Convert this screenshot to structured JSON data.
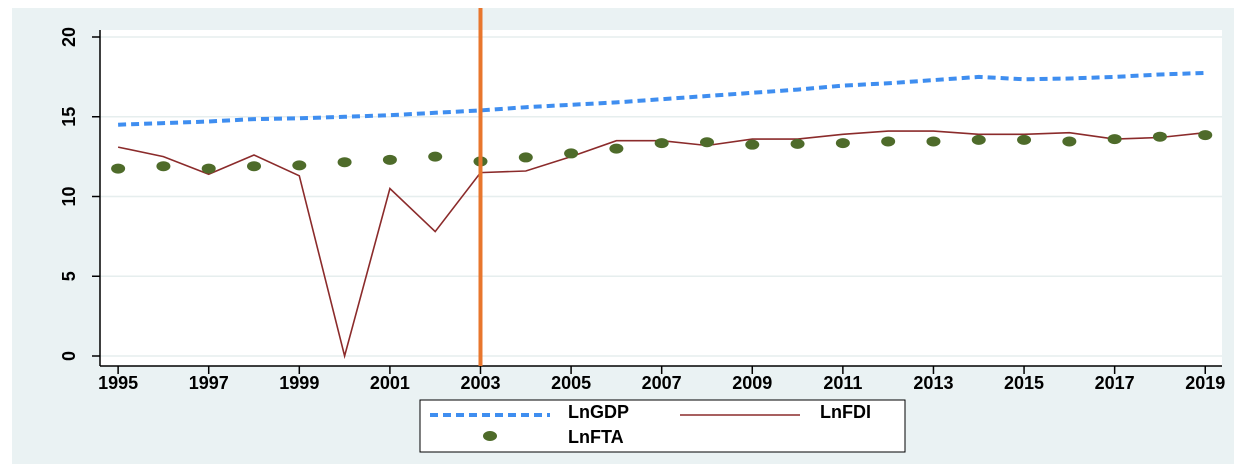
{
  "chart_data": {
    "type": "line",
    "x": [
      1995,
      1996,
      1997,
      1998,
      1999,
      2000,
      2001,
      2002,
      2003,
      2004,
      2005,
      2006,
      2007,
      2008,
      2009,
      2010,
      2011,
      2012,
      2013,
      2014,
      2015,
      2016,
      2017,
      2018,
      2019
    ],
    "series": [
      {
        "name": "LnGDP",
        "color": "#3f8ef0",
        "style": "dash",
        "values": [
          14.5,
          14.6,
          14.7,
          14.85,
          14.9,
          15.0,
          15.1,
          15.25,
          15.4,
          15.6,
          15.75,
          15.9,
          16.1,
          16.3,
          16.5,
          16.7,
          16.95,
          17.1,
          17.3,
          17.5,
          17.35,
          17.4,
          17.5,
          17.65,
          17.75
        ]
      },
      {
        "name": "LnFDI",
        "color": "#8b2b2b",
        "style": "solid",
        "values": [
          13.1,
          12.5,
          11.4,
          12.6,
          11.3,
          0.0,
          10.5,
          7.8,
          11.5,
          11.6,
          12.5,
          13.5,
          13.5,
          13.2,
          13.6,
          13.6,
          13.9,
          14.1,
          14.1,
          13.9,
          13.9,
          14.0,
          13.6,
          13.7,
          14.0
        ]
      },
      {
        "name": "LnFTA",
        "color": "#4e6b2a",
        "style": "markers",
        "values": [
          11.75,
          11.9,
          11.75,
          11.9,
          11.95,
          12.15,
          12.3,
          12.5,
          12.2,
          12.45,
          12.7,
          13.0,
          13.35,
          13.4,
          13.25,
          13.3,
          13.35,
          13.45,
          13.45,
          13.55,
          13.55,
          13.45,
          13.6,
          13.75,
          13.85
        ]
      }
    ],
    "xlim": [
      1994.6,
      2019.37
    ],
    "xticks": [
      1995,
      1997,
      1999,
      2001,
      2003,
      2005,
      2007,
      2009,
      2011,
      2013,
      2015,
      2017,
      2019
    ],
    "ylim": [
      0,
      20
    ],
    "yticks": [
      0,
      5,
      10,
      15,
      20
    ],
    "grid": true,
    "vline": {
      "x": 2003,
      "color": "#e8762d"
    }
  }
}
